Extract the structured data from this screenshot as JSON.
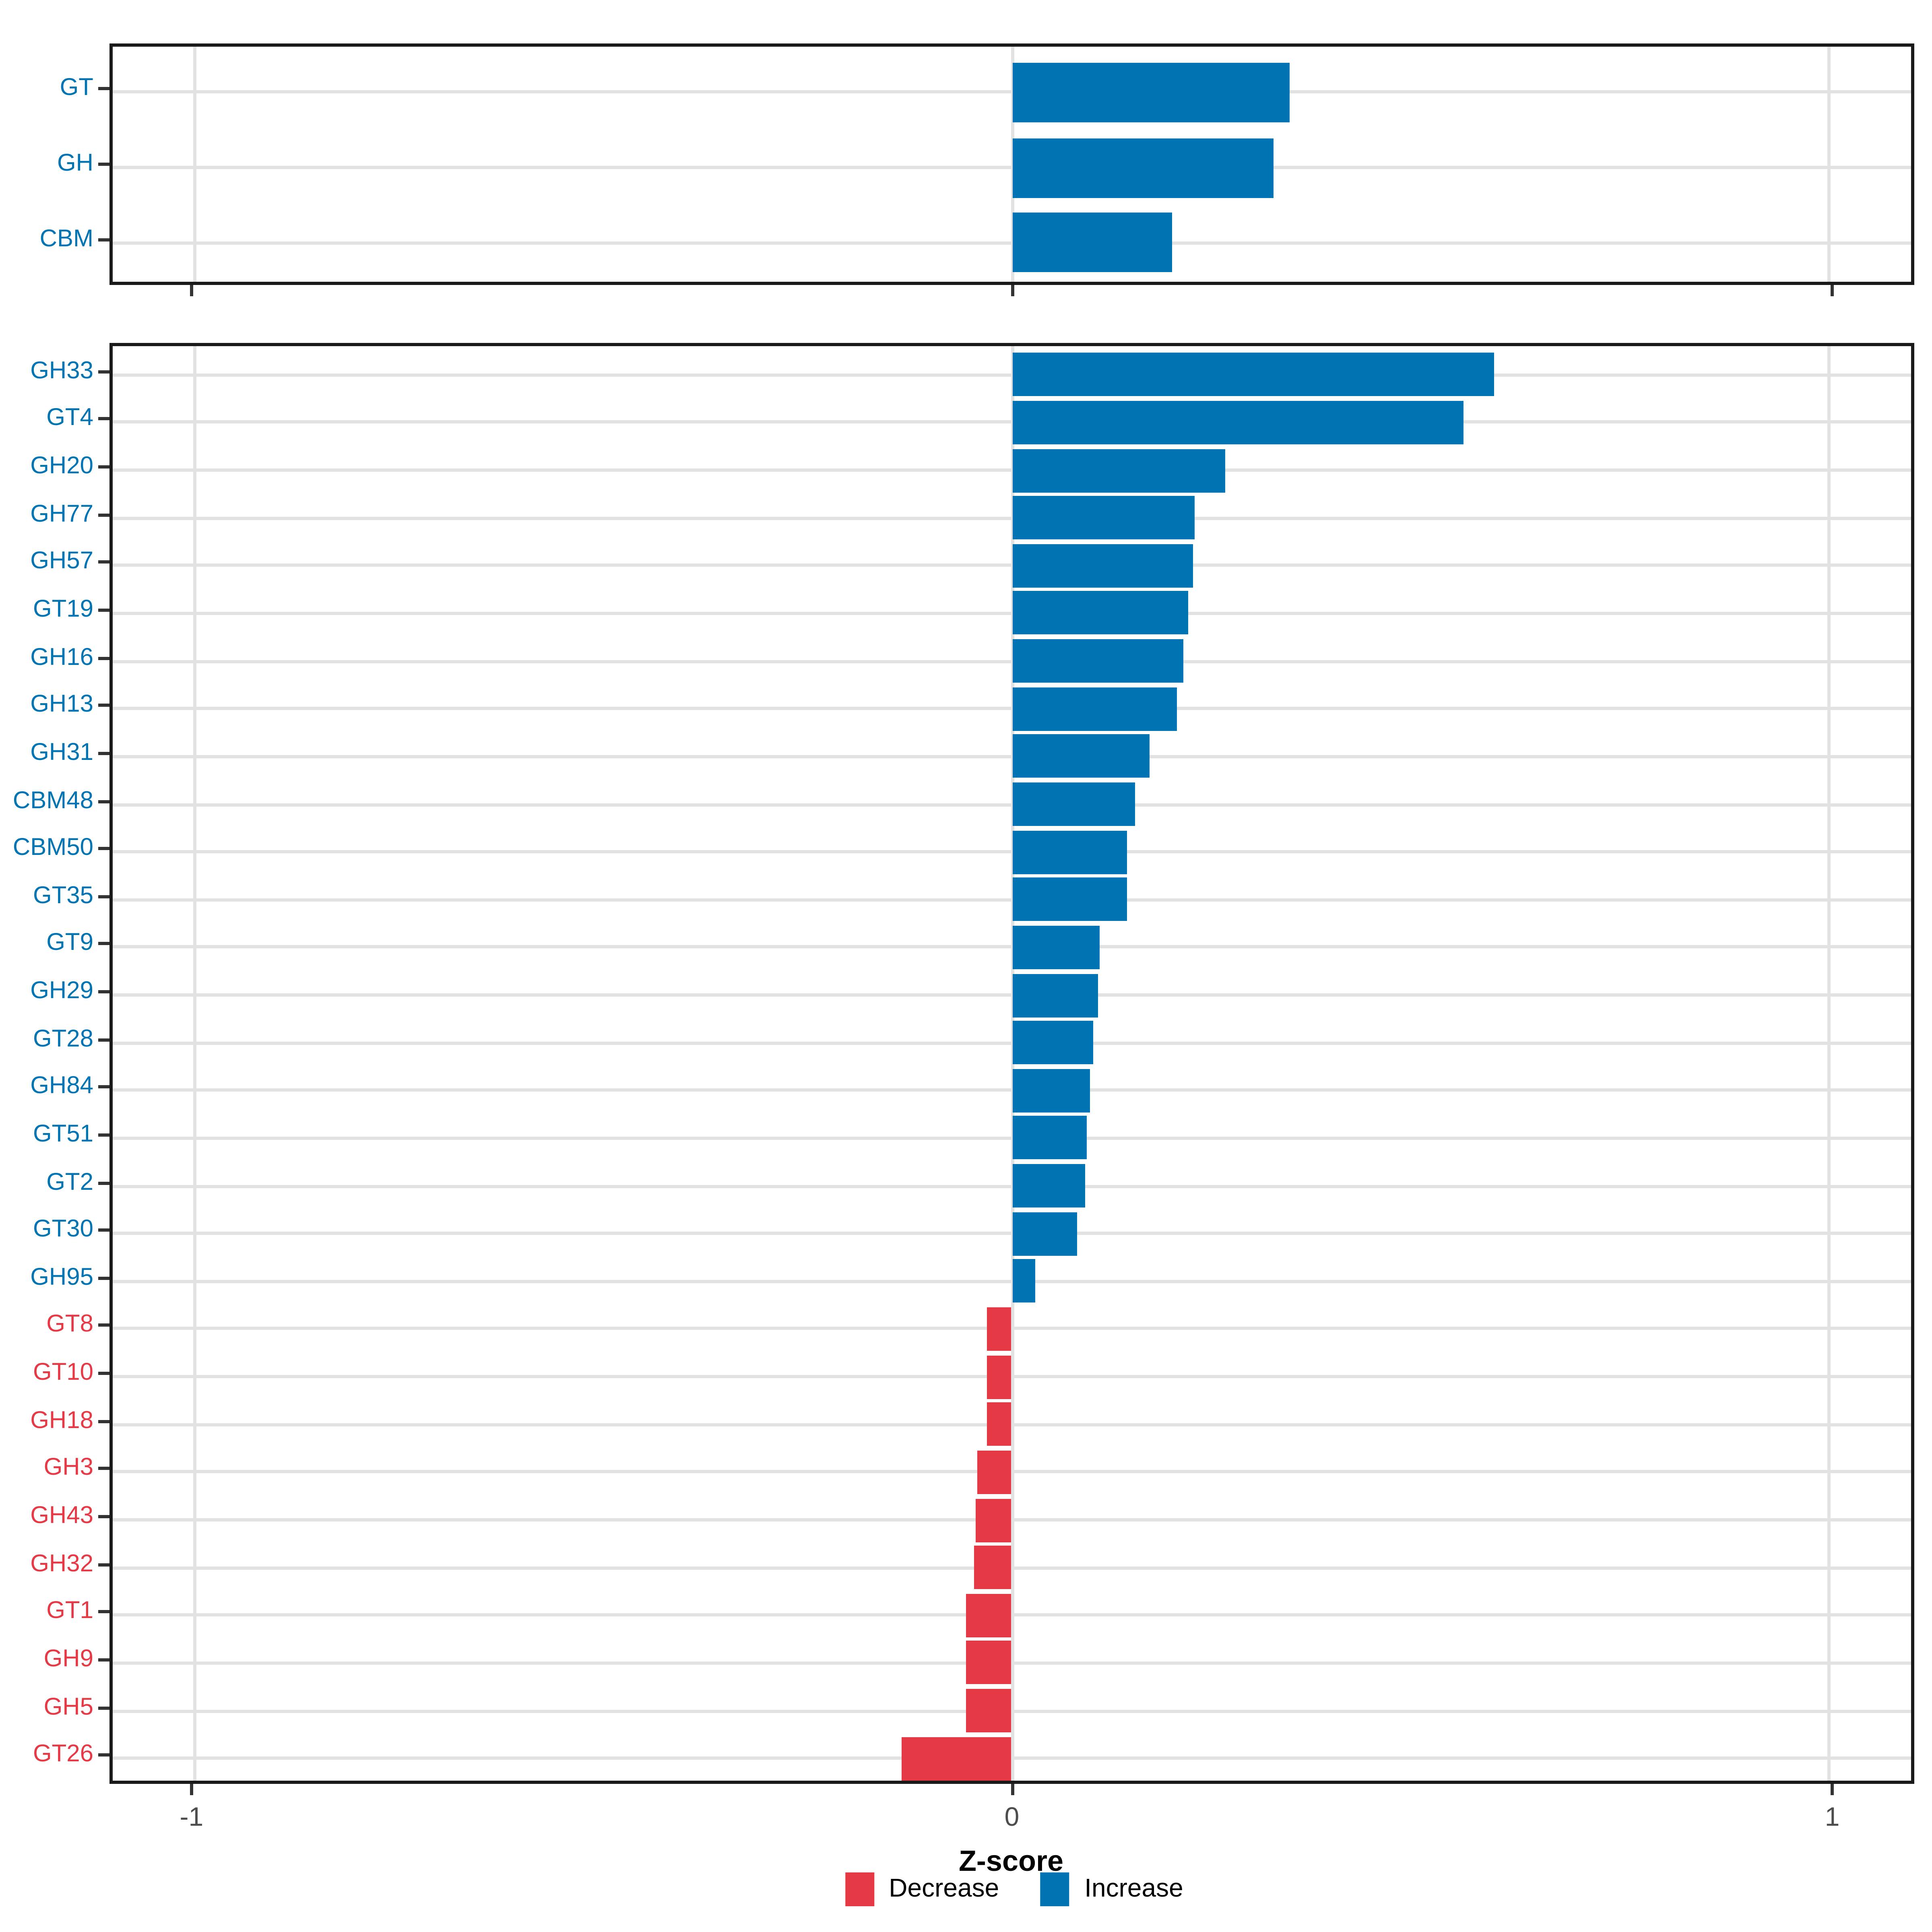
{
  "chart_data": {
    "type": "bar",
    "orientation": "horizontal",
    "title": "",
    "xlabel": "Z-score",
    "ylabel": "",
    "xlim": [
      -1.1,
      1.1
    ],
    "x_ticks": [
      -1,
      0,
      1
    ],
    "x_tick_labels": [
      "-1",
      "0",
      "1"
    ],
    "grid": "major-light-gray",
    "legend_position": "bottom",
    "colors": {
      "increase": "#0073B2",
      "decrease": "#E63946"
    },
    "legend": [
      {
        "label": "Decrease",
        "color": "#E63946",
        "key": "decrease"
      },
      {
        "label": "Increase",
        "color": "#0073B2",
        "key": "increase"
      }
    ],
    "panels": [
      {
        "name": "class-summary",
        "categories": [
          "GT",
          "GH",
          "CBM"
        ],
        "values": [
          0.34,
          0.32,
          0.195
        ]
      },
      {
        "name": "family-detail",
        "categories": [
          "GH33",
          "GT4",
          "GH20",
          "GH77",
          "GH57",
          "GT19",
          "GH16",
          "GH13",
          "GH31",
          "CBM48",
          "CBM50",
          "GT35",
          "GT9",
          "GH29",
          "GT28",
          "GH84",
          "GT51",
          "GT2",
          "GT30",
          "GH95",
          "GT8",
          "GT10",
          "GH18",
          "GH3",
          "GH43",
          "GH32",
          "GT1",
          "GH9",
          "GH5",
          "GT26"
        ],
        "values": [
          0.59,
          0.552,
          0.26,
          0.223,
          0.222,
          0.216,
          0.21,
          0.201,
          0.168,
          0.15,
          0.141,
          0.14,
          0.108,
          0.106,
          0.1,
          0.095,
          0.091,
          0.089,
          0.079,
          0.029,
          -0.03,
          -0.03,
          -0.031,
          -0.043,
          -0.045,
          -0.046,
          -0.056,
          -0.057,
          -0.057,
          -0.135
        ]
      }
    ]
  }
}
